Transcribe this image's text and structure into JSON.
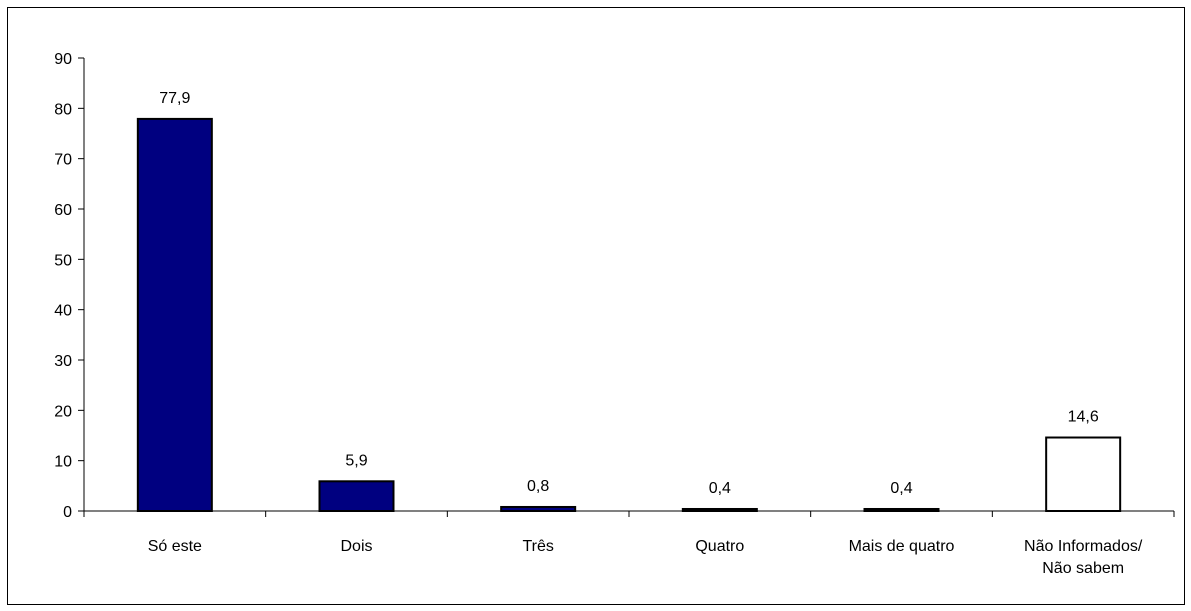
{
  "chart_data": {
    "type": "bar",
    "title": "",
    "xlabel": "",
    "ylabel": "",
    "ylim": [
      0,
      90
    ],
    "y_ticks": [
      "0",
      "10",
      "20",
      "30",
      "40",
      "50",
      "60",
      "70",
      "80",
      "90"
    ],
    "y_tick_values": [
      0,
      10,
      20,
      30,
      40,
      50,
      60,
      70,
      80,
      90
    ],
    "grid": false,
    "categories": [
      [
        "Só este"
      ],
      [
        "Dois"
      ],
      [
        "Três"
      ],
      [
        "Quatro"
      ],
      [
        "Mais de quatro"
      ],
      [
        "Não Informados/",
        "Não sabem"
      ]
    ],
    "values": [
      77.9,
      5.9,
      0.8,
      0.4,
      0.4,
      14.6
    ],
    "value_labels": [
      "77,9",
      "5,9",
      "0,8",
      "0,4",
      "0,4",
      "14,6"
    ],
    "bar_fills": [
      "#000080",
      "#000080",
      "#000080",
      "#000080",
      "#000080",
      "#ffffff"
    ],
    "bar_stroke": "#000000"
  }
}
